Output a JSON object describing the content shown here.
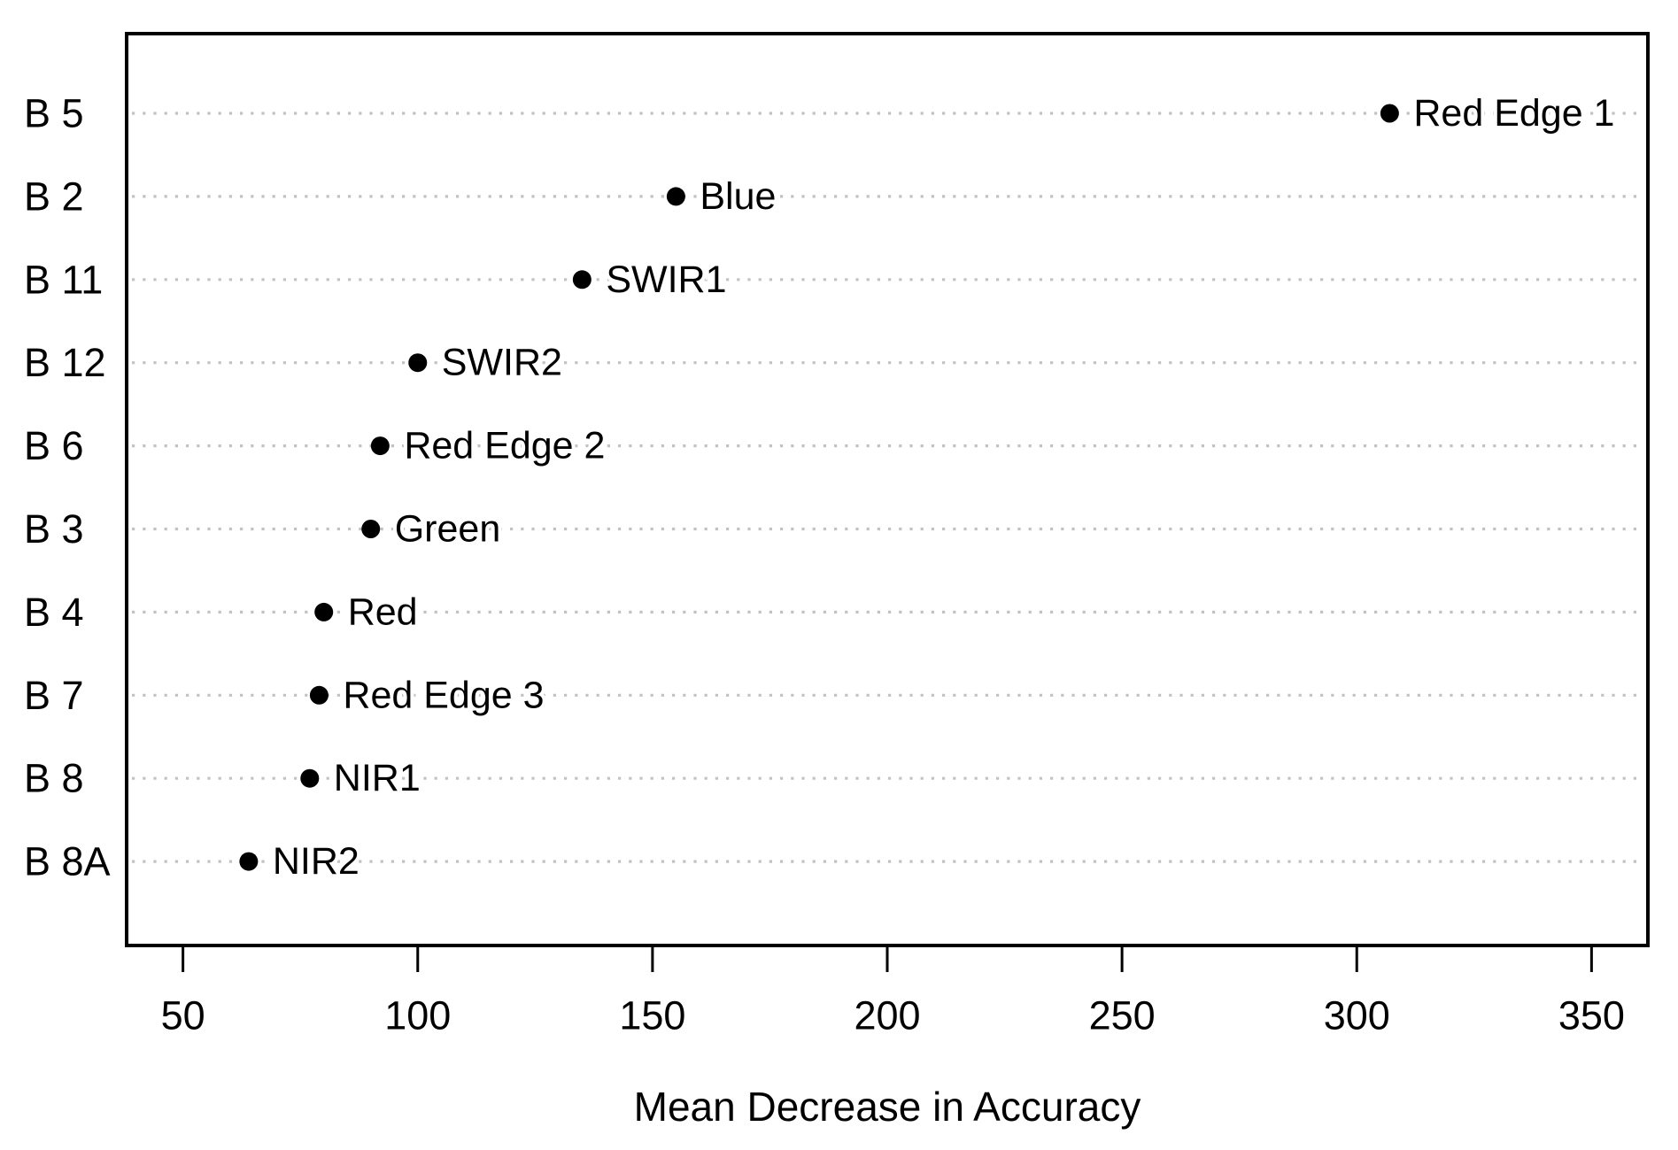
{
  "chart_data": {
    "type": "scatter",
    "subtype": "dotchart-variable-importance",
    "title": "",
    "xlabel": "Mean Decrease in Accuracy",
    "ylabel": "",
    "xlim": [
      38,
      362
    ],
    "x_ticks": [
      50,
      100,
      150,
      200,
      250,
      300,
      350
    ],
    "grid": "dotted-horizontal",
    "legend_position": "none",
    "rows": [
      {
        "band": "B 5",
        "label": "Red Edge 1",
        "value": 307
      },
      {
        "band": "B 2",
        "label": "Blue",
        "value": 155
      },
      {
        "band": "B 11",
        "label": "SWIR1",
        "value": 135
      },
      {
        "band": "B 12",
        "label": "SWIR2",
        "value": 100
      },
      {
        "band": "B 6",
        "label": "Red Edge 2",
        "value": 92
      },
      {
        "band": "B 3",
        "label": "Green",
        "value": 90
      },
      {
        "band": "B 4",
        "label": "Red",
        "value": 80
      },
      {
        "band": "B 7",
        "label": "Red Edge 3",
        "value": 79
      },
      {
        "band": "B 8",
        "label": "NIR1",
        "value": 77
      },
      {
        "band": "B 8A",
        "label": "NIR2",
        "value": 64
      }
    ],
    "colors": {
      "point": "#000000",
      "grid": "#c2c2c2",
      "text": "#000000",
      "box_border": "#000000",
      "background": "#ffffff"
    }
  }
}
